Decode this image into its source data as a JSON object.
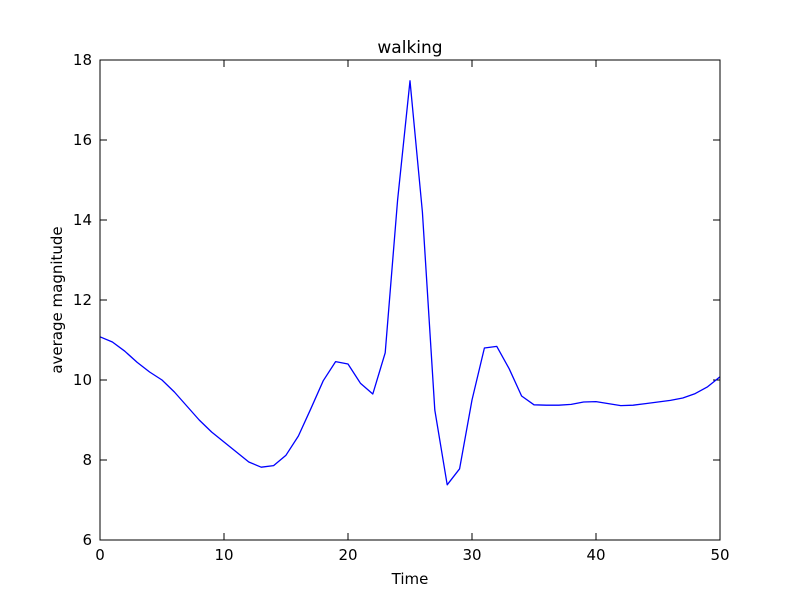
{
  "chart_data": {
    "type": "line",
    "title": "walking",
    "xlabel": "Time",
    "ylabel": "average magnitude",
    "xlim": [
      0,
      50
    ],
    "ylim": [
      6,
      18
    ],
    "xticks": [
      "0",
      "10",
      "20",
      "30",
      "40",
      "50"
    ],
    "yticks": [
      "6",
      "8",
      "10",
      "12",
      "14",
      "16",
      "18"
    ],
    "grid": false,
    "legend": "none",
    "series": [
      {
        "color": "#0000ff",
        "x": [
          0,
          1,
          2,
          3,
          4,
          5,
          6,
          7,
          8,
          9,
          10,
          11,
          12,
          13,
          14,
          15,
          16,
          17,
          18,
          19,
          20,
          21,
          22,
          23,
          24,
          25,
          26,
          27,
          28,
          29,
          30,
          31,
          32,
          33,
          34,
          35,
          36,
          37,
          38,
          39,
          40,
          41,
          42,
          43,
          44,
          45,
          46,
          47,
          48,
          49,
          50
        ],
        "y": [
          11.08,
          10.95,
          10.72,
          10.44,
          10.2,
          10.0,
          9.7,
          9.35,
          9.0,
          8.7,
          8.45,
          8.2,
          7.95,
          7.82,
          7.86,
          8.12,
          8.6,
          9.28,
          9.98,
          10.46,
          10.4,
          9.92,
          9.65,
          10.68,
          14.5,
          17.48,
          14.2,
          9.25,
          7.38,
          7.78,
          9.5,
          10.8,
          10.84,
          10.28,
          9.6,
          9.38,
          9.37,
          9.37,
          9.39,
          9.45,
          9.46,
          9.41,
          9.36,
          9.37,
          9.41,
          9.45,
          9.49,
          9.55,
          9.66,
          9.83,
          10.08
        ]
      }
    ]
  }
}
